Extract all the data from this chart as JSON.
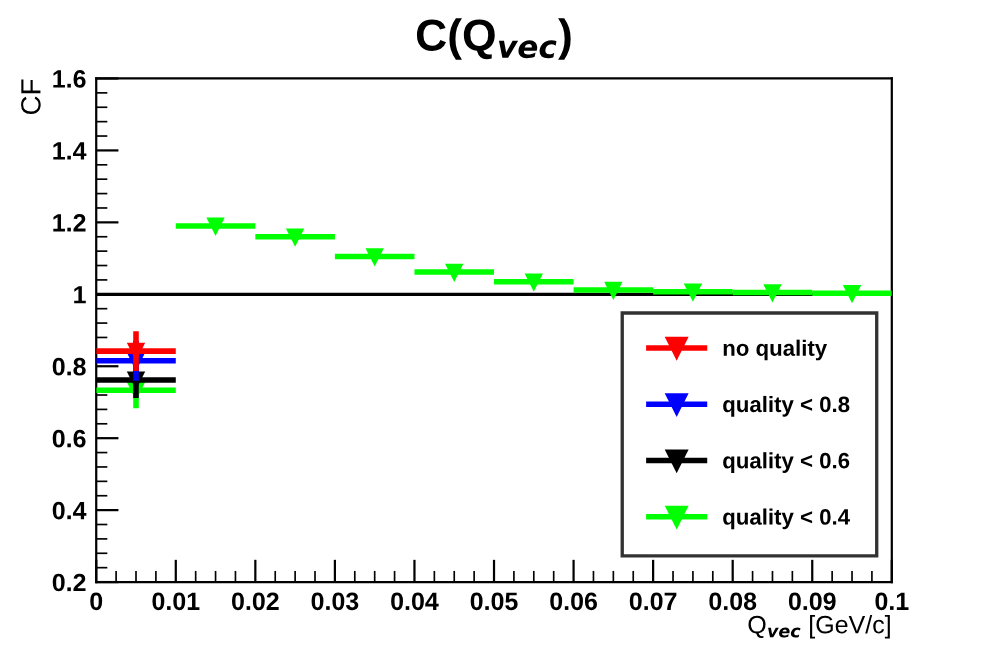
{
  "chart_data": {
    "type": "scatter",
    "title": "C(Q$_{vec}$)",
    "xlabel": "Q$_{vec}$ [GeV/c]",
    "ylabel": "CF",
    "x": [
      0.005,
      0.015,
      0.025,
      0.035,
      0.045,
      0.055,
      0.065,
      0.075,
      0.085,
      0.095
    ],
    "series": [
      {
        "name": "no quality",
        "color": "#ff0000",
        "values": [
          0.842,
          null,
          null,
          null,
          null,
          null,
          null,
          null,
          null,
          null
        ],
        "errors": [
          0.055,
          null,
          null,
          null,
          null,
          null,
          null,
          null,
          null,
          null
        ],
        "xerrors": [
          0.005,
          null,
          null,
          null,
          null,
          null,
          null,
          null,
          null,
          null
        ]
      },
      {
        "name": "quality < 0.8",
        "color": "#0000ff",
        "values": [
          0.815,
          null,
          null,
          null,
          null,
          null,
          null,
          null,
          null,
          null
        ],
        "errors": [
          0.055,
          null,
          null,
          null,
          null,
          null,
          null,
          null,
          null,
          null
        ],
        "xerrors": [
          0.005,
          null,
          null,
          null,
          null,
          null,
          null,
          null,
          null,
          null
        ]
      },
      {
        "name": "quality < 0.6",
        "color": "#000000",
        "values": [
          0.762,
          null,
          null,
          null,
          null,
          null,
          null,
          null,
          null,
          null
        ],
        "errors": [
          0.05,
          null,
          null,
          null,
          null,
          null,
          null,
          null,
          null,
          null
        ],
        "xerrors": [
          0.005,
          null,
          null,
          null,
          null,
          null,
          null,
          null,
          null,
          null
        ]
      },
      {
        "name": "quality < 0.4",
        "color": "#00ff00",
        "values": [
          0.733,
          1.19,
          1.16,
          1.105,
          1.062,
          1.035,
          1.012,
          1.007,
          1.005,
          1.003
        ],
        "errors": [
          0.05,
          null,
          null,
          null,
          null,
          null,
          null,
          null,
          null,
          null
        ],
        "xerrors": [
          0.005,
          0.005,
          0.005,
          0.005,
          0.005,
          0.005,
          0.005,
          0.005,
          0.005,
          0.005
        ]
      }
    ],
    "xlim": [
      0,
      0.1
    ],
    "ylim": [
      0.2,
      1.6
    ],
    "xticks": [
      0,
      0.01,
      0.02,
      0.03,
      0.04,
      0.05,
      0.06,
      0.07,
      0.08,
      0.09,
      0.1
    ],
    "yticks": [
      0.2,
      0.4,
      0.6,
      0.8,
      1,
      1.2,
      1.4,
      1.6
    ],
    "ref_lines": [
      {
        "axis": "y",
        "value": 1,
        "color": "#000000"
      }
    ],
    "marker": "triangle",
    "legend": "bottom right",
    "grid": false
  }
}
